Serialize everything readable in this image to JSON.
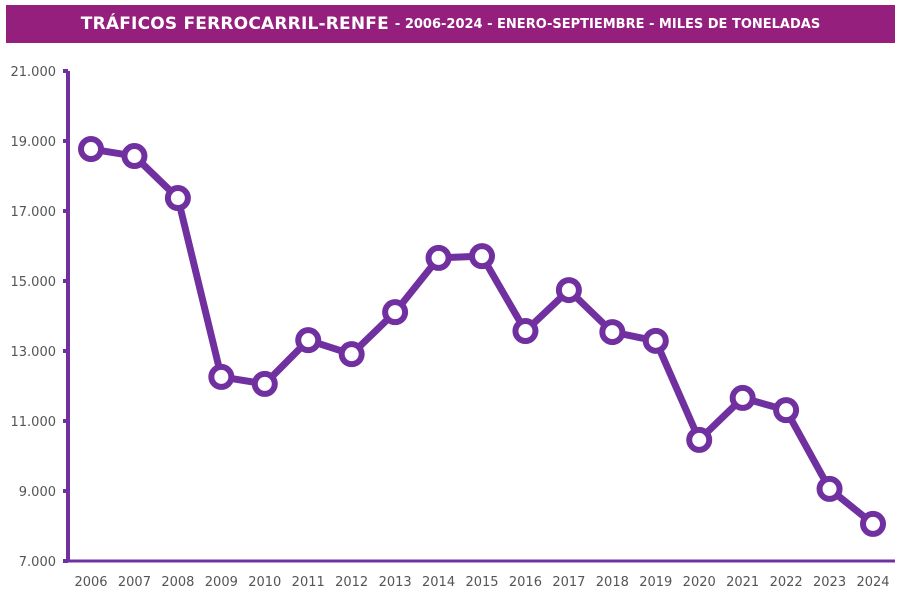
{
  "chart_data": {
    "type": "line",
    "title": "TRÁFICOS FERROCARRIL-RENFE",
    "subtitle": "- 2006-2024 - ENERO-SEPTIEMBRE - MILES DE TONELADAS",
    "xlabel": "",
    "ylabel": "",
    "ylim": [
      7000,
      21000
    ],
    "yticks": [
      7000,
      9000,
      11000,
      13000,
      15000,
      17000,
      19000,
      21000
    ],
    "ytick_labels": [
      "7.000",
      "9.000",
      "11.000",
      "13.000",
      "15.000",
      "17.000",
      "19.000",
      "21.000"
    ],
    "grid": false,
    "categories": [
      "2006",
      "2007",
      "2008",
      "2009",
      "2010",
      "2011",
      "2012",
      "2013",
      "2014",
      "2015",
      "2016",
      "2017",
      "2018",
      "2019",
      "2020",
      "2021",
      "2022",
      "2023",
      "2024"
    ],
    "series": [
      {
        "name": "Miles de toneladas",
        "color": "#7030a0",
        "values": [
          18770,
          18570,
          17370,
          12260,
          12060,
          13310,
          12910,
          14110,
          15660,
          15710,
          13570,
          14740,
          13540,
          13290,
          10460,
          11660,
          11310,
          9060,
          8060
        ]
      }
    ]
  },
  "colors": {
    "banner": "#951f7c",
    "line": "#7030a0",
    "axis": "#7030a0"
  }
}
